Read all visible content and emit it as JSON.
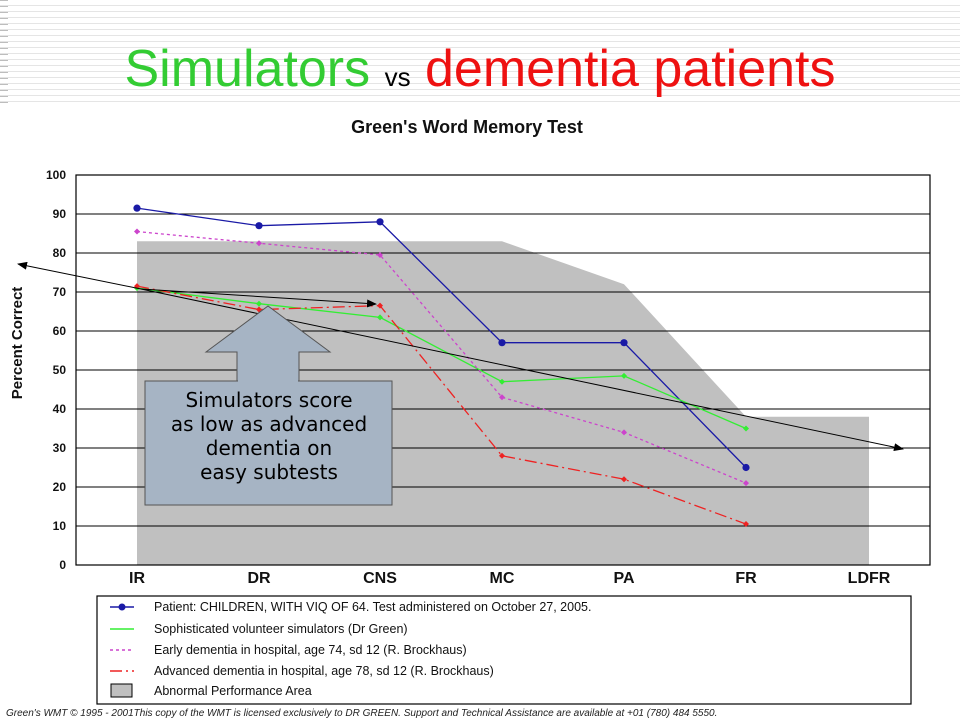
{
  "slide": {
    "title_part1": "Simulators",
    "title_vs": "vs",
    "title_part2": "dementia patients",
    "colors": {
      "green": "#33cc33",
      "red": "#ee1111"
    }
  },
  "callout": {
    "lines": [
      "Simulators score",
      "as low as advanced",
      "dementia on",
      "easy subtests"
    ],
    "fill": "#a6b4c4"
  },
  "footer": "Green's WMT © 1995 - 2001This copy of the WMT is licensed exclusively to DR GREEN. Support and Technical Assistance are available at +01 (780) 484 5550.",
  "chart_data": {
    "type": "line",
    "title": "Green's Word Memory Test",
    "ylabel": "Percent Correct",
    "xlabel": "",
    "categories": [
      "IR",
      "DR",
      "CNS",
      "MC",
      "PA",
      "FR",
      "LDFR"
    ],
    "ylim": [
      0,
      100
    ],
    "yticks": [
      0,
      10,
      20,
      30,
      40,
      50,
      60,
      70,
      80,
      90,
      100
    ],
    "grid": true,
    "legend_position": "bottom",
    "abnormal_area": {
      "name": "Abnormal Performance Area",
      "color": "#c0c0c0",
      "values": [
        83,
        83,
        83,
        83,
        72,
        38,
        38
      ]
    },
    "series": [
      {
        "name": "Patient:  CHILDREN, WITH VIQ OF 64. Test administered on October 27, 2005.",
        "color": "#1a1aa6",
        "dash": "solid",
        "marker": "circle",
        "values": [
          91.5,
          87,
          88,
          57,
          57,
          25,
          null
        ]
      },
      {
        "name": "Sophisticated volunteer simulators (Dr Green)",
        "color": "#33ee33",
        "dash": "solid",
        "marker": "diamond",
        "values": [
          71,
          67,
          63.5,
          47,
          48.5,
          35,
          null
        ]
      },
      {
        "name": "Early dementia in hospital, age 74, sd 12 (R. Brockhaus)",
        "color": "#cc44cc",
        "dash": "dotted",
        "marker": "diamond",
        "values": [
          85.5,
          82.5,
          79.5,
          43,
          34,
          21,
          null
        ]
      },
      {
        "name": "Advanced dementia in hospital, age 78, sd 12 (R. Brockhaus)",
        "color": "#ee2222",
        "dash": "dashdot",
        "marker": "diamond",
        "values": [
          71.5,
          65.5,
          66.5,
          28,
          22,
          10.5,
          null
        ]
      }
    ]
  }
}
